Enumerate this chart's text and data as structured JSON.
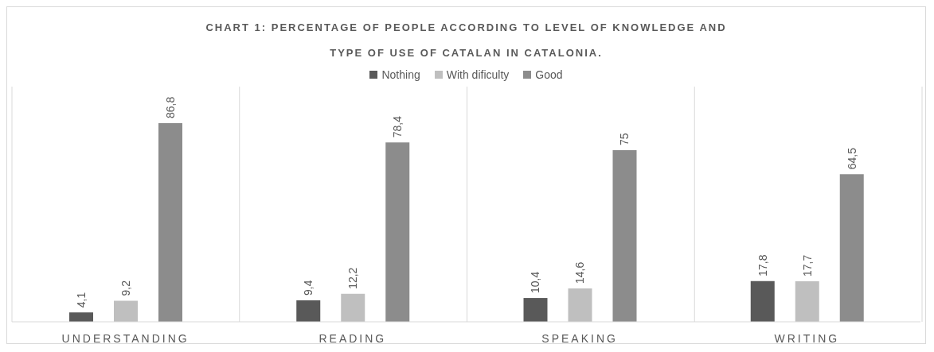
{
  "chart_data": {
    "type": "bar",
    "title": "CHART 1: PERCENTAGE OF PEOPLE ACCORDING TO LEVEL OF KNOWLEDGE AND TYPE OF USE OF CATALAN IN CATALONIA.",
    "categories": [
      "UNDERSTANDING",
      "READING",
      "SPEAKING",
      "WRITING"
    ],
    "series": [
      {
        "name": "Nothing",
        "color": "#595959",
        "values": [
          4.1,
          9.4,
          10.4,
          17.8
        ],
        "value_labels": [
          "4,1",
          "9,4",
          "10,4",
          "17,8"
        ]
      },
      {
        "name": "With dificulty",
        "color": "#bfbfbf",
        "values": [
          9.2,
          12.2,
          14.6,
          17.7
        ],
        "value_labels": [
          "9,2",
          "12,2",
          "14,6",
          "17,7"
        ]
      },
      {
        "name": "Good",
        "color": "#8c8c8c",
        "values": [
          86.8,
          78.4,
          75,
          64.5
        ],
        "value_labels": [
          "86,8",
          "78,4",
          "75",
          "64,5"
        ]
      }
    ],
    "legend": "top",
    "grid": "x"
  }
}
